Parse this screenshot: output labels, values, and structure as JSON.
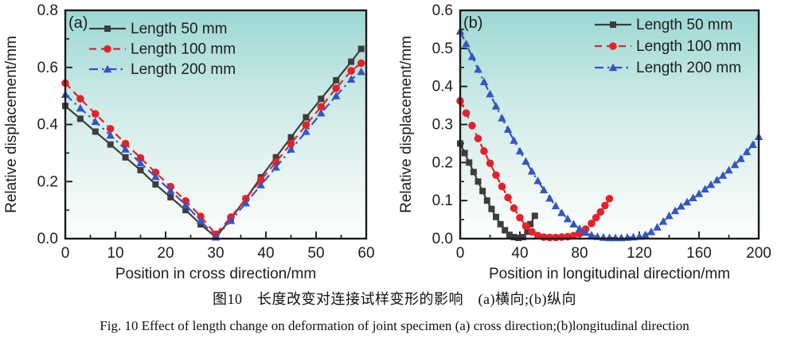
{
  "figure": {
    "caption_zh": "图10　长度改变对连接试样变形的影响　(a)横向;(b)纵向",
    "caption_en": "Fig. 10   Effect of length change on deformation of joint specimen   (a) cross direction;(b)longitudinal direction"
  },
  "colors": {
    "series_black": "#3d3d3d",
    "series_red": "#e62129",
    "series_blue": "#3356c2",
    "frame": "#1a1a1a",
    "bg_gradient_top": "#9cd8d5",
    "bg_gradient_mid": "#cdeae7",
    "bg_gradient_bottom": "#fdfefe"
  },
  "chart_data": [
    {
      "type": "line",
      "panel_label": "(a)",
      "xlabel": "Position in cross direction/mm",
      "ylabel": "Relative displacement/mm",
      "xlim": [
        0,
        60
      ],
      "ylim": [
        0,
        0.8
      ],
      "xticks": [
        0,
        10,
        20,
        30,
        40,
        50,
        60
      ],
      "yticks": [
        0.0,
        0.2,
        0.4,
        0.6,
        0.8
      ],
      "x_minor_step": 5,
      "y_minor_step": 0.1,
      "grid": false,
      "legend_position": "top-left",
      "series": [
        {
          "name": "Length 50 mm",
          "color": "#3d3d3d",
          "dash": "solid",
          "marker": "square",
          "points": [
            [
              0,
              0.465
            ],
            [
              3,
              0.42
            ],
            [
              6,
              0.375
            ],
            [
              9,
              0.33
            ],
            [
              12,
              0.285
            ],
            [
              15,
              0.24
            ],
            [
              18,
              0.19
            ],
            [
              21,
              0.145
            ],
            [
              24,
              0.1
            ],
            [
              27,
              0.05
            ],
            [
              30,
              0.005
            ],
            [
              33,
              0.07
            ],
            [
              36,
              0.14
            ],
            [
              39,
              0.215
            ],
            [
              42,
              0.285
            ],
            [
              45,
              0.355
            ],
            [
              48,
              0.425
            ],
            [
              51,
              0.49
            ],
            [
              54,
              0.555
            ],
            [
              57,
              0.62
            ],
            [
              59,
              0.665
            ]
          ]
        },
        {
          "name": "Length 100 mm",
          "color": "#e62129",
          "dash": "dashed",
          "marker": "circle",
          "points": [
            [
              0,
              0.545
            ],
            [
              3,
              0.49
            ],
            [
              6,
              0.437
            ],
            [
              9,
              0.385
            ],
            [
              12,
              0.333
            ],
            [
              15,
              0.283
            ],
            [
              18,
              0.232
            ],
            [
              21,
              0.182
            ],
            [
              24,
              0.132
            ],
            [
              27,
              0.078
            ],
            [
              30,
              0.015
            ],
            [
              33,
              0.075
            ],
            [
              36,
              0.14
            ],
            [
              39,
              0.205
            ],
            [
              42,
              0.268
            ],
            [
              45,
              0.333
            ],
            [
              48,
              0.398
            ],
            [
              51,
              0.462
            ],
            [
              54,
              0.527
            ],
            [
              57,
              0.588
            ],
            [
              59,
              0.615
            ]
          ]
        },
        {
          "name": "Length 200 mm",
          "color": "#3356c2",
          "dash": "dashdot",
          "marker": "triangle",
          "points": [
            [
              0,
              0.505
            ],
            [
              3,
              0.457
            ],
            [
              6,
              0.41
            ],
            [
              9,
              0.362
            ],
            [
              12,
              0.313
            ],
            [
              15,
              0.265
            ],
            [
              18,
              0.217
            ],
            [
              21,
              0.168
            ],
            [
              24,
              0.118
            ],
            [
              27,
              0.063
            ],
            [
              30,
              0.005
            ],
            [
              33,
              0.063
            ],
            [
              36,
              0.125
            ],
            [
              39,
              0.188
            ],
            [
              42,
              0.25
            ],
            [
              45,
              0.313
            ],
            [
              48,
              0.375
            ],
            [
              51,
              0.44
            ],
            [
              54,
              0.5
            ],
            [
              57,
              0.558
            ],
            [
              59,
              0.585
            ]
          ]
        }
      ]
    },
    {
      "type": "line",
      "panel_label": "(b)",
      "xlabel": "Position in longitudinal direction/mm",
      "ylabel": "Relative displacement/mm",
      "xlim": [
        0,
        200
      ],
      "ylim": [
        0,
        0.6
      ],
      "xticks": [
        0,
        40,
        80,
        120,
        160,
        200
      ],
      "yticks": [
        0.0,
        0.1,
        0.2,
        0.3,
        0.4,
        0.5,
        0.6
      ],
      "x_minor_step": 20,
      "y_minor_step": 0.05,
      "grid": false,
      "legend_position": "top-right",
      "series": [
        {
          "name": "Length 50 mm",
          "color": "#3d3d3d",
          "dash": "solid",
          "marker": "square",
          "points": [
            [
              0,
              0.25
            ],
            [
              3,
              0.225
            ],
            [
              6,
              0.2
            ],
            [
              9,
              0.175
            ],
            [
              12,
              0.15
            ],
            [
              15,
              0.125
            ],
            [
              18,
              0.1
            ],
            [
              21,
              0.078
            ],
            [
              24,
              0.057
            ],
            [
              27,
              0.038
            ],
            [
              30,
              0.022
            ],
            [
              33,
              0.01
            ],
            [
              36,
              0.004
            ],
            [
              39,
              0.002
            ],
            [
              42,
              0.004
            ],
            [
              45,
              0.018
            ],
            [
              47,
              0.038
            ],
            [
              50,
              0.06
            ]
          ]
        },
        {
          "name": "Length 100 mm",
          "color": "#e62129",
          "dash": "dashed",
          "marker": "circle",
          "points": [
            [
              0,
              0.362
            ],
            [
              4,
              0.33
            ],
            [
              8,
              0.297
            ],
            [
              12,
              0.263
            ],
            [
              16,
              0.23
            ],
            [
              20,
              0.198
            ],
            [
              24,
              0.167
            ],
            [
              28,
              0.137
            ],
            [
              32,
              0.108
            ],
            [
              36,
              0.08
            ],
            [
              40,
              0.055
            ],
            [
              44,
              0.033
            ],
            [
              48,
              0.018
            ],
            [
              52,
              0.008
            ],
            [
              56,
              0.004
            ],
            [
              60,
              0.003
            ],
            [
              64,
              0.003
            ],
            [
              68,
              0.004
            ],
            [
              72,
              0.005
            ],
            [
              76,
              0.008
            ],
            [
              80,
              0.013
            ],
            [
              84,
              0.025
            ],
            [
              88,
              0.04
            ],
            [
              91,
              0.055
            ],
            [
              94,
              0.07
            ],
            [
              97,
              0.087
            ],
            [
              100,
              0.105
            ]
          ]
        },
        {
          "name": "Length 200 mm",
          "color": "#3356c2",
          "dash": "dashdot",
          "marker": "triangle",
          "points": [
            [
              0,
              0.545
            ],
            [
              4,
              0.512
            ],
            [
              8,
              0.478
            ],
            [
              12,
              0.445
            ],
            [
              16,
              0.412
            ],
            [
              20,
              0.38
            ],
            [
              24,
              0.348
            ],
            [
              28,
              0.317
            ],
            [
              32,
              0.287
            ],
            [
              36,
              0.258
            ],
            [
              40,
              0.23
            ],
            [
              44,
              0.203
            ],
            [
              48,
              0.177
            ],
            [
              52,
              0.152
            ],
            [
              56,
              0.128
            ],
            [
              60,
              0.106
            ],
            [
              64,
              0.086
            ],
            [
              68,
              0.068
            ],
            [
              72,
              0.052
            ],
            [
              76,
              0.038
            ],
            [
              80,
              0.026
            ],
            [
              84,
              0.016
            ],
            [
              88,
              0.009
            ],
            [
              92,
              0.005
            ],
            [
              96,
              0.003
            ],
            [
              100,
              0.002
            ],
            [
              104,
              0.002
            ],
            [
              108,
              0.002
            ],
            [
              112,
              0.003
            ],
            [
              116,
              0.004
            ],
            [
              120,
              0.006
            ],
            [
              124,
              0.01
            ],
            [
              128,
              0.018
            ],
            [
              132,
              0.03
            ],
            [
              136,
              0.045
            ],
            [
              140,
              0.06
            ],
            [
              144,
              0.073
            ],
            [
              148,
              0.085
            ],
            [
              152,
              0.096
            ],
            [
              156,
              0.107
            ],
            [
              160,
              0.118
            ],
            [
              164,
              0.13
            ],
            [
              168,
              0.142
            ],
            [
              172,
              0.154
            ],
            [
              176,
              0.166
            ],
            [
              180,
              0.18
            ],
            [
              184,
              0.194
            ],
            [
              188,
              0.21
            ],
            [
              192,
              0.228
            ],
            [
              196,
              0.247
            ],
            [
              200,
              0.268
            ]
          ]
        }
      ]
    }
  ]
}
